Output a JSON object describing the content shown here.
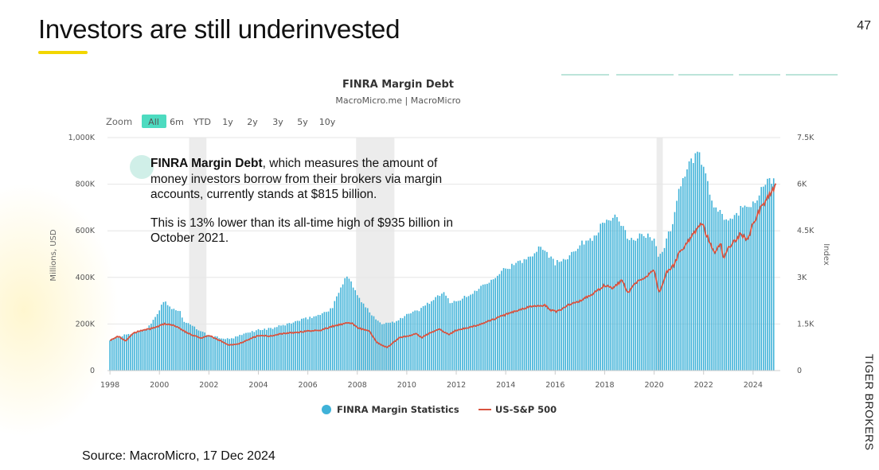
{
  "slide": {
    "title": "Investors are still underinvested",
    "page_number": "47",
    "side_brand": "TIGER BROKERS",
    "source": "Source: MacroMicro, 17 Dec 2024",
    "annotation": {
      "bold_lead": "FINRA Margin Debt",
      "para1_rest": ", which measures the amount of money investors borrow from their brokers via margin accounts, currently stands at $815 billion.",
      "para2": "This is 13% lower than its all-time high of $935 billion in October 2021."
    }
  },
  "zoom": {
    "label": "Zoom",
    "options": [
      "All",
      "6m",
      "YTD",
      "1y",
      "2y",
      "3y",
      "5y",
      "10y"
    ],
    "selected": "All"
  },
  "colors": {
    "bar": "#3fb2d8",
    "line": "#d9533f",
    "zoom_active": "#4ddbc0",
    "recession": "#ececec",
    "grid": "#e6e6e6"
  },
  "chart_data": {
    "type": "bar",
    "title": "FINRA Margin Debt",
    "subtitle": "MacroMicro.me | MacroMicro",
    "ylabel": "Millions, USD",
    "y2label": "Index",
    "ylim": [
      0,
      1000000
    ],
    "y2lim": [
      0,
      7500
    ],
    "y_ticks": [
      "0",
      "200K",
      "400K",
      "600K",
      "800K",
      "1,000K"
    ],
    "y2_ticks": [
      "0",
      "1.5K",
      "3K",
      "4.5K",
      "6K",
      "7.5K"
    ],
    "x_ticks": [
      "1998",
      "2000",
      "2002",
      "2004",
      "2006",
      "2008",
      "2010",
      "2012",
      "2014",
      "2016",
      "2018",
      "2020",
      "2022",
      "2024"
    ],
    "xlim": [
      1997.9,
      2025.1
    ],
    "recessions": [
      [
        2001.2,
        2001.9
      ],
      [
        2007.95,
        2009.5
      ],
      [
        2020.1,
        2020.35
      ]
    ],
    "legend": [
      "FINRA Margin Statistics",
      "US-S&P 500"
    ],
    "series": [
      {
        "name": "FINRA Margin Statistics",
        "kind": "bar",
        "points": [
          [
            1998.0,
            130000
          ],
          [
            1998.5,
            150000
          ],
          [
            1999.0,
            160000
          ],
          [
            1999.5,
            180000
          ],
          [
            2000.0,
            260000
          ],
          [
            2000.2,
            300000
          ],
          [
            2000.5,
            265000
          ],
          [
            2000.8,
            260000
          ],
          [
            2001.0,
            210000
          ],
          [
            2001.5,
            180000
          ],
          [
            2002.0,
            150000
          ],
          [
            2002.5,
            140000
          ],
          [
            2002.8,
            135000
          ],
          [
            2003.0,
            140000
          ],
          [
            2003.5,
            160000
          ],
          [
            2004.0,
            175000
          ],
          [
            2004.5,
            180000
          ],
          [
            2005.0,
            195000
          ],
          [
            2005.5,
            210000
          ],
          [
            2006.0,
            225000
          ],
          [
            2006.5,
            240000
          ],
          [
            2007.0,
            270000
          ],
          [
            2007.3,
            350000
          ],
          [
            2007.55,
            410000
          ],
          [
            2007.8,
            370000
          ],
          [
            2008.0,
            320000
          ],
          [
            2008.5,
            250000
          ],
          [
            2009.0,
            200000
          ],
          [
            2009.5,
            210000
          ],
          [
            2010.0,
            240000
          ],
          [
            2010.5,
            260000
          ],
          [
            2011.0,
            300000
          ],
          [
            2011.3,
            320000
          ],
          [
            2011.5,
            330000
          ],
          [
            2011.8,
            290000
          ],
          [
            2012.0,
            300000
          ],
          [
            2012.5,
            320000
          ],
          [
            2013.0,
            360000
          ],
          [
            2013.5,
            400000
          ],
          [
            2014.0,
            440000
          ],
          [
            2014.5,
            460000
          ],
          [
            2015.0,
            490000
          ],
          [
            2015.4,
            540000
          ],
          [
            2015.8,
            490000
          ],
          [
            2016.0,
            460000
          ],
          [
            2016.5,
            490000
          ],
          [
            2017.0,
            540000
          ],
          [
            2017.5,
            570000
          ],
          [
            2018.0,
            640000
          ],
          [
            2018.4,
            660000
          ],
          [
            2018.8,
            600000
          ],
          [
            2019.0,
            560000
          ],
          [
            2019.5,
            580000
          ],
          [
            2020.0,
            570000
          ],
          [
            2020.2,
            480000
          ],
          [
            2020.5,
            560000
          ],
          [
            2020.8,
            650000
          ],
          [
            2021.0,
            780000
          ],
          [
            2021.4,
            880000
          ],
          [
            2021.8,
            935000
          ],
          [
            2022.0,
            870000
          ],
          [
            2022.4,
            700000
          ],
          [
            2022.8,
            660000
          ],
          [
            2023.0,
            640000
          ],
          [
            2023.5,
            690000
          ],
          [
            2024.0,
            720000
          ],
          [
            2024.3,
            770000
          ],
          [
            2024.6,
            810000
          ],
          [
            2024.9,
            815000
          ]
        ]
      },
      {
        "name": "US-S&P 500",
        "kind": "line",
        "points": [
          [
            1998.0,
            970
          ],
          [
            1998.3,
            1110
          ],
          [
            1998.65,
            960
          ],
          [
            1998.9,
            1180
          ],
          [
            1999.2,
            1280
          ],
          [
            1999.6,
            1340
          ],
          [
            2000.0,
            1440
          ],
          [
            2000.2,
            1500
          ],
          [
            2000.6,
            1460
          ],
          [
            2000.9,
            1320
          ],
          [
            2001.2,
            1180
          ],
          [
            2001.7,
            1050
          ],
          [
            2002.0,
            1130
          ],
          [
            2002.5,
            950
          ],
          [
            2002.8,
            830
          ],
          [
            2003.2,
            850
          ],
          [
            2003.6,
            1000
          ],
          [
            2004.0,
            1130
          ],
          [
            2004.5,
            1110
          ],
          [
            2005.0,
            1200
          ],
          [
            2005.5,
            1220
          ],
          [
            2006.0,
            1280
          ],
          [
            2006.5,
            1300
          ],
          [
            2007.0,
            1430
          ],
          [
            2007.5,
            1520
          ],
          [
            2007.8,
            1540
          ],
          [
            2008.0,
            1380
          ],
          [
            2008.5,
            1260
          ],
          [
            2008.8,
            900
          ],
          [
            2009.2,
            740
          ],
          [
            2009.4,
            870
          ],
          [
            2009.7,
            1050
          ],
          [
            2010.0,
            1110
          ],
          [
            2010.4,
            1180
          ],
          [
            2010.6,
            1060
          ],
          [
            2010.9,
            1200
          ],
          [
            2011.3,
            1340
          ],
          [
            2011.7,
            1150
          ],
          [
            2012.0,
            1300
          ],
          [
            2012.5,
            1380
          ],
          [
            2013.0,
            1500
          ],
          [
            2013.5,
            1650
          ],
          [
            2014.0,
            1800
          ],
          [
            2014.5,
            1950
          ],
          [
            2015.0,
            2050
          ],
          [
            2015.6,
            2100
          ],
          [
            2015.8,
            1950
          ],
          [
            2016.1,
            1900
          ],
          [
            2016.5,
            2100
          ],
          [
            2017.0,
            2250
          ],
          [
            2017.5,
            2450
          ],
          [
            2018.0,
            2750
          ],
          [
            2018.3,
            2650
          ],
          [
            2018.7,
            2900
          ],
          [
            2018.95,
            2500
          ],
          [
            2019.2,
            2800
          ],
          [
            2019.6,
            2950
          ],
          [
            2020.0,
            3250
          ],
          [
            2020.2,
            2500
          ],
          [
            2020.5,
            3150
          ],
          [
            2020.8,
            3400
          ],
          [
            2021.0,
            3750
          ],
          [
            2021.5,
            4300
          ],
          [
            2021.95,
            4750
          ],
          [
            2022.1,
            4400
          ],
          [
            2022.45,
            3800
          ],
          [
            2022.7,
            4100
          ],
          [
            2022.8,
            3600
          ],
          [
            2023.0,
            3950
          ],
          [
            2023.5,
            4400
          ],
          [
            2023.8,
            4200
          ],
          [
            2024.0,
            4750
          ],
          [
            2024.3,
            5200
          ],
          [
            2024.5,
            5450
          ],
          [
            2024.7,
            5700
          ],
          [
            2024.95,
            6050
          ]
        ]
      }
    ]
  }
}
